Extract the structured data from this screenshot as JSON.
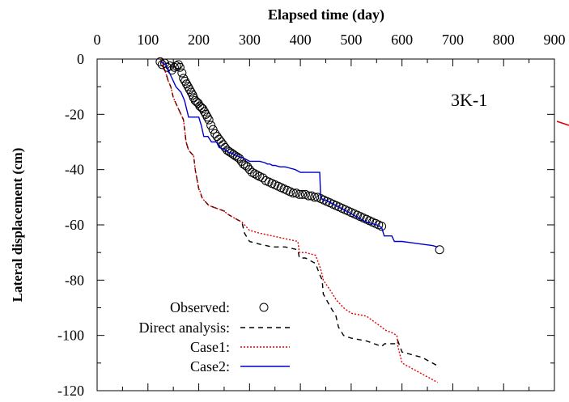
{
  "chart_data": {
    "type": "line",
    "xlabel": "Elapsed time (day)",
    "ylabel": "Lateral displacement (cm)",
    "xlim": [
      0,
      900
    ],
    "ylim": [
      -120,
      0
    ],
    "x_ticks": [
      "0",
      "100",
      "200",
      "300",
      "400",
      "500",
      "600",
      "700",
      "800",
      "900"
    ],
    "y_ticks": [
      "0",
      "-20",
      "-40",
      "-60",
      "-80",
      "-100",
      "-120"
    ],
    "x_axis_position": "top",
    "grid": false,
    "panel_label": "3K-1",
    "legend_position": "bottom-left",
    "series": [
      {
        "name": "Observed:",
        "style": "open-circle",
        "color": "#000000",
        "x": [
          124,
          128,
          133,
          138,
          143,
          147,
          152,
          156,
          160,
          163,
          167,
          170,
          173,
          176,
          179,
          182,
          185,
          188,
          190,
          193,
          196,
          199,
          202,
          205,
          208,
          211,
          214,
          217,
          220,
          224,
          228,
          232,
          236,
          240,
          244,
          248,
          252,
          256,
          260,
          264,
          268,
          272,
          276,
          280,
          284,
          288,
          292,
          296,
          300,
          305,
          310,
          315,
          320,
          326,
          332,
          338,
          344,
          350,
          356,
          362,
          368,
          374,
          380,
          386,
          392,
          398,
          404,
          410,
          416,
          422,
          428,
          434,
          440,
          446,
          452,
          458,
          464,
          470,
          476,
          482,
          488,
          494,
          500,
          506,
          512,
          518,
          524,
          530,
          536,
          542,
          548,
          554,
          560,
          674
        ],
        "y": [
          -1,
          -2,
          -1.5,
          -3,
          -2.5,
          -4,
          -3,
          -2.5,
          -2,
          -3,
          -5,
          -7,
          -8,
          -9,
          -10,
          -11,
          -12,
          -13,
          -14,
          -15,
          -15.5,
          -16,
          -17,
          -17.5,
          -18,
          -19,
          -20,
          -21,
          -22,
          -24,
          -25.5,
          -27,
          -28,
          -29,
          -30,
          -31,
          -32,
          -33,
          -33.5,
          -34,
          -34.5,
          -35,
          -35.5,
          -36,
          -37,
          -38,
          -38.5,
          -39,
          -40,
          -41,
          -41.5,
          -42,
          -42.5,
          -43,
          -44,
          -44.5,
          -45,
          -45.5,
          -46,
          -46.5,
          -47,
          -47.5,
          -48,
          -48.5,
          -48.5,
          -49,
          -49,
          -49,
          -49.5,
          -49.5,
          -50,
          -50,
          -50.5,
          -51,
          -51.5,
          -52,
          -52.5,
          -53,
          -53.5,
          -54,
          -54.5,
          -55,
          -55.5,
          -56,
          -56.5,
          -57,
          -57.5,
          -58,
          -58.5,
          -59,
          -59.5,
          -60,
          -60.5,
          -69
        ]
      },
      {
        "name": "Direct analysis:",
        "style": "dashed",
        "color": "#000000",
        "x": [
          125,
          135,
          140,
          145,
          150,
          155,
          160,
          165,
          170,
          175,
          180,
          185,
          190,
          193,
          197,
          200,
          203,
          206,
          210,
          220,
          235,
          250,
          256,
          265,
          275,
          285,
          290,
          300,
          320,
          345,
          370,
          395,
          398,
          410,
          430,
          438,
          443,
          445,
          460,
          470,
          475,
          485,
          500,
          530,
          545,
          560,
          566,
          580,
          590,
          592,
          600,
          620,
          640,
          660,
          670
        ],
        "y": [
          0,
          -5,
          -8,
          -10,
          -14,
          -16,
          -18,
          -20,
          -22,
          -30,
          -33,
          -34,
          -35,
          -40,
          -44,
          -47,
          -48,
          -50,
          -51,
          -53,
          -54,
          -55,
          -56,
          -57,
          -58,
          -59,
          -63,
          -66,
          -67,
          -68,
          -68,
          -69,
          -72,
          -72,
          -74,
          -78,
          -80,
          -85,
          -90,
          -93,
          -97,
          -100,
          -101,
          -102,
          -103,
          -104,
          -103,
          -103,
          -103,
          -102,
          -106,
          -107,
          -108,
          -110,
          -111
        ]
      },
      {
        "name": "Case1:",
        "style": "dotted",
        "color": "#e00000",
        "x": [
          125,
          135,
          140,
          145,
          150,
          155,
          160,
          165,
          170,
          175,
          180,
          185,
          190,
          193,
          197,
          200,
          203,
          206,
          210,
          220,
          235,
          250,
          256,
          265,
          275,
          285,
          290,
          300,
          320,
          345,
          370,
          395,
          398,
          410,
          430,
          438,
          443,
          445,
          460,
          470,
          475,
          485,
          500,
          530,
          545,
          560,
          566,
          580,
          590,
          592,
          600,
          620,
          640,
          660,
          670
        ],
        "y": [
          0,
          -5,
          -8,
          -10,
          -14,
          -16,
          -18,
          -20,
          -22,
          -30,
          -33,
          -34,
          -35,
          -40,
          -44,
          -47,
          -48,
          -50,
          -51,
          -53,
          -54,
          -55,
          -56,
          -57,
          -58,
          -59,
          -60,
          -62,
          -63,
          -64,
          -65,
          -66,
          -70,
          -70,
          -71,
          -75,
          -78,
          -80,
          -84,
          -87,
          -88,
          -90,
          -92,
          -93,
          -95,
          -97,
          -98,
          -99,
          -100,
          -104,
          -110,
          -112,
          -114,
          -116,
          -117
        ]
      },
      {
        "name": "Case2:",
        "style": "solid",
        "color": "#0000cc",
        "x": [
          125,
          135,
          140,
          145,
          150,
          155,
          165,
          172,
          180,
          190,
          200,
          205,
          210,
          218,
          225,
          235,
          240,
          255,
          260,
          265,
          275,
          290,
          300,
          310,
          320,
          330,
          335,
          340,
          345,
          350,
          360,
          370,
          380,
          390,
          400,
          410,
          420,
          430,
          438,
          440,
          445,
          450,
          460,
          470,
          480,
          490,
          500,
          510,
          520,
          530,
          540,
          550,
          560,
          565,
          580,
          585,
          600,
          620,
          640,
          660,
          670
        ],
        "y": [
          -1,
          -2,
          -4,
          -6,
          -8,
          -10,
          -12,
          -15,
          -21,
          -21,
          -21,
          -24,
          -28,
          -28,
          -30,
          -30,
          -32,
          -33,
          -34,
          -34,
          -35,
          -36,
          -37,
          -37,
          -37,
          -37.5,
          -38,
          -38,
          -38.5,
          -38.5,
          -39,
          -39,
          -39.5,
          -40,
          -41,
          -41,
          -41,
          -41,
          -41,
          -50,
          -51,
          -51,
          -52,
          -53,
          -54,
          -55,
          -56,
          -57,
          -58,
          -59,
          -59.5,
          -60,
          -61,
          -64,
          -64,
          -66,
          -66,
          -66.5,
          -67,
          -67.5,
          -68
        ]
      }
    ]
  }
}
